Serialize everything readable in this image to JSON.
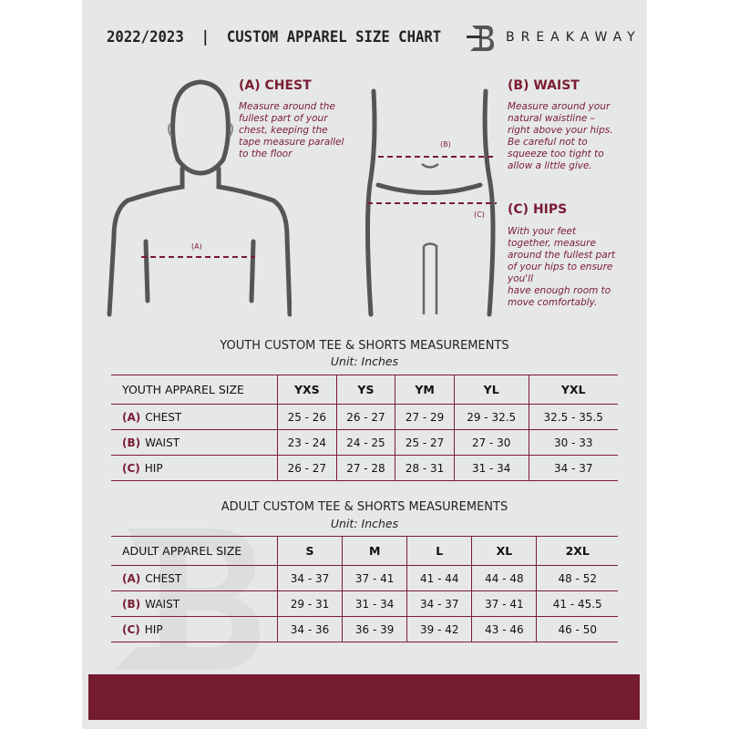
{
  "header": {
    "title": "2022/2023  |  CUSTOM APPAREL SIZE CHART",
    "brand": "BREAKAWAY",
    "logo_letter": "B"
  },
  "colors": {
    "accent": "#7a1c33",
    "background": "#e6e7e8",
    "band": "#741b30"
  },
  "measures": {
    "chest": {
      "heading": "(A) CHEST",
      "label": "(A)",
      "text": [
        "Measure around the",
        "fullest part of your",
        "chest, keeping the",
        "tape measure parallel",
        "to the floor"
      ]
    },
    "waist": {
      "heading": "(B) WAIST",
      "label": "(B)",
      "text": [
        "Measure around your",
        "natural waistline –",
        "right above your hips.",
        "Be careful not to",
        "squeeze too tight to",
        "allow a little give."
      ]
    },
    "hips": {
      "heading": "(C) HIPS",
      "label": "(C)",
      "text": [
        "With your feet",
        "together, measure",
        "around the fullest part",
        "of your hips to ensure",
        "you'll",
        "have enough room to",
        "move comfortably."
      ]
    }
  },
  "youth": {
    "title": "YOUTH CUSTOM TEE & SHORTS MEASUREMENTS",
    "unit": "Unit: Inches",
    "header": [
      "YOUTH APPAREL SIZE",
      "YXS",
      "YS",
      "YM",
      "YL",
      "YXL"
    ],
    "rows": [
      {
        "code": "(A)",
        "name": "CHEST",
        "values": [
          "25 - 26",
          "26 - 27",
          "27 - 29",
          "29 - 32.5",
          "32.5 - 35.5"
        ]
      },
      {
        "code": "(B)",
        "name": "WAIST",
        "values": [
          "23 - 24",
          "24 - 25",
          "25 - 27",
          "27 - 30",
          "30 - 33"
        ]
      },
      {
        "code": "(C)",
        "name": "HIP",
        "values": [
          "26 - 27",
          "27 - 28",
          "28 - 31",
          "31 - 34",
          "34 - 37"
        ]
      }
    ]
  },
  "adult": {
    "title": "ADULT CUSTOM TEE & SHORTS MEASUREMENTS",
    "unit": "Unit: Inches",
    "header": [
      "ADULT APPAREL SIZE",
      "S",
      "M",
      "L",
      "XL",
      "2XL"
    ],
    "rows": [
      {
        "code": "(A)",
        "name": "CHEST",
        "values": [
          "34 - 37",
          "37 - 41",
          "41 - 44",
          "44 - 48",
          "48 - 52"
        ]
      },
      {
        "code": "(B)",
        "name": "WAIST",
        "values": [
          "29 - 31",
          "31 - 34",
          "34 - 37",
          "37 - 41",
          "41 - 45.5"
        ]
      },
      {
        "code": "(C)",
        "name": "HIP",
        "values": [
          "34 - 36",
          "36 - 39",
          "39 - 42",
          "43 - 46",
          "46 - 50"
        ]
      }
    ]
  }
}
